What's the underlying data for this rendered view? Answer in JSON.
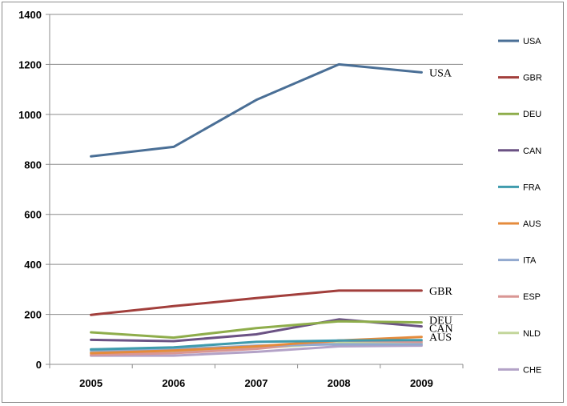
{
  "chart_data": {
    "type": "line",
    "title": "",
    "xlabel": "",
    "ylabel": "",
    "x": [
      "2005",
      "2006",
      "2007",
      "2008",
      "2009"
    ],
    "ylim": [
      0,
      1400
    ],
    "yticks": [
      0,
      200,
      400,
      600,
      800,
      1000,
      1200,
      1400
    ],
    "grid": true,
    "legend_position": "right",
    "series": [
      {
        "name": "USA",
        "color": "#4a6f96",
        "values": [
          832,
          870,
          1058,
          1200,
          1168
        ],
        "end_label": "USA"
      },
      {
        "name": "GBR",
        "color": "#a23f3c",
        "values": [
          198,
          233,
          265,
          295,
          295
        ],
        "end_label": "GBR"
      },
      {
        "name": "DEU",
        "color": "#8ead4b",
        "values": [
          128,
          107,
          145,
          172,
          168
        ],
        "end_label": "DEU"
      },
      {
        "name": "CAN",
        "color": "#6b5284",
        "values": [
          98,
          93,
          120,
          180,
          152
        ],
        "end_label": "CAN"
      },
      {
        "name": "FRA",
        "color": "#3f9bad",
        "values": [
          60,
          68,
          90,
          95,
          97
        ],
        "end_label": ""
      },
      {
        "name": "AUS",
        "color": "#e58b3c",
        "values": [
          45,
          55,
          72,
          95,
          110
        ],
        "end_label": "AUS"
      },
      {
        "name": "ITA",
        "color": "#92a9cf",
        "values": [
          55,
          60,
          75,
          80,
          80
        ],
        "end_label": ""
      },
      {
        "name": "ESP",
        "color": "#d99694",
        "values": [
          38,
          45,
          62,
          95,
          90
        ],
        "end_label": ""
      },
      {
        "name": "NLD",
        "color": "#c3d69b",
        "values": [
          48,
          50,
          65,
          85,
          85
        ],
        "end_label": ""
      },
      {
        "name": "CHE",
        "color": "#b3a2c7",
        "values": [
          35,
          35,
          50,
          72,
          75
        ],
        "end_label": ""
      }
    ]
  }
}
